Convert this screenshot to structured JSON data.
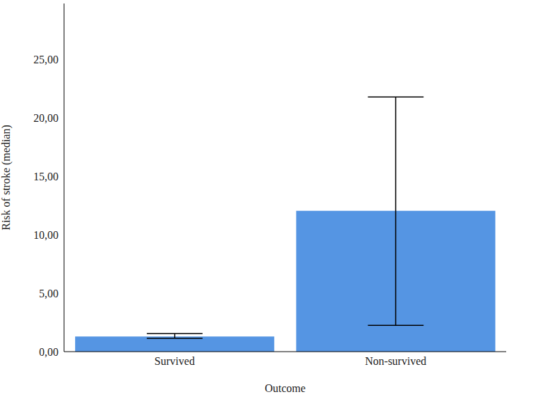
{
  "chart_data": {
    "type": "bar",
    "x_label": "Outcome",
    "y_label": "Risk of stroke (median)",
    "categories": [
      "Survived",
      "Non-survived"
    ],
    "values": [
      1.3,
      12.05
    ],
    "error_low": [
      1.15,
      2.25
    ],
    "error_high": [
      1.55,
      21.8
    ],
    "color": "#5595e3",
    "ylim": [
      0,
      29.8
    ],
    "yticks": [
      {
        "value": 0,
        "label": "0,00"
      },
      {
        "value": 5,
        "label": "5,00"
      },
      {
        "value": 10,
        "label": "10,00"
      },
      {
        "value": 15,
        "label": "15,00"
      },
      {
        "value": 20,
        "label": "20,00"
      },
      {
        "value": 25,
        "label": "25,00"
      }
    ],
    "grid": false
  }
}
